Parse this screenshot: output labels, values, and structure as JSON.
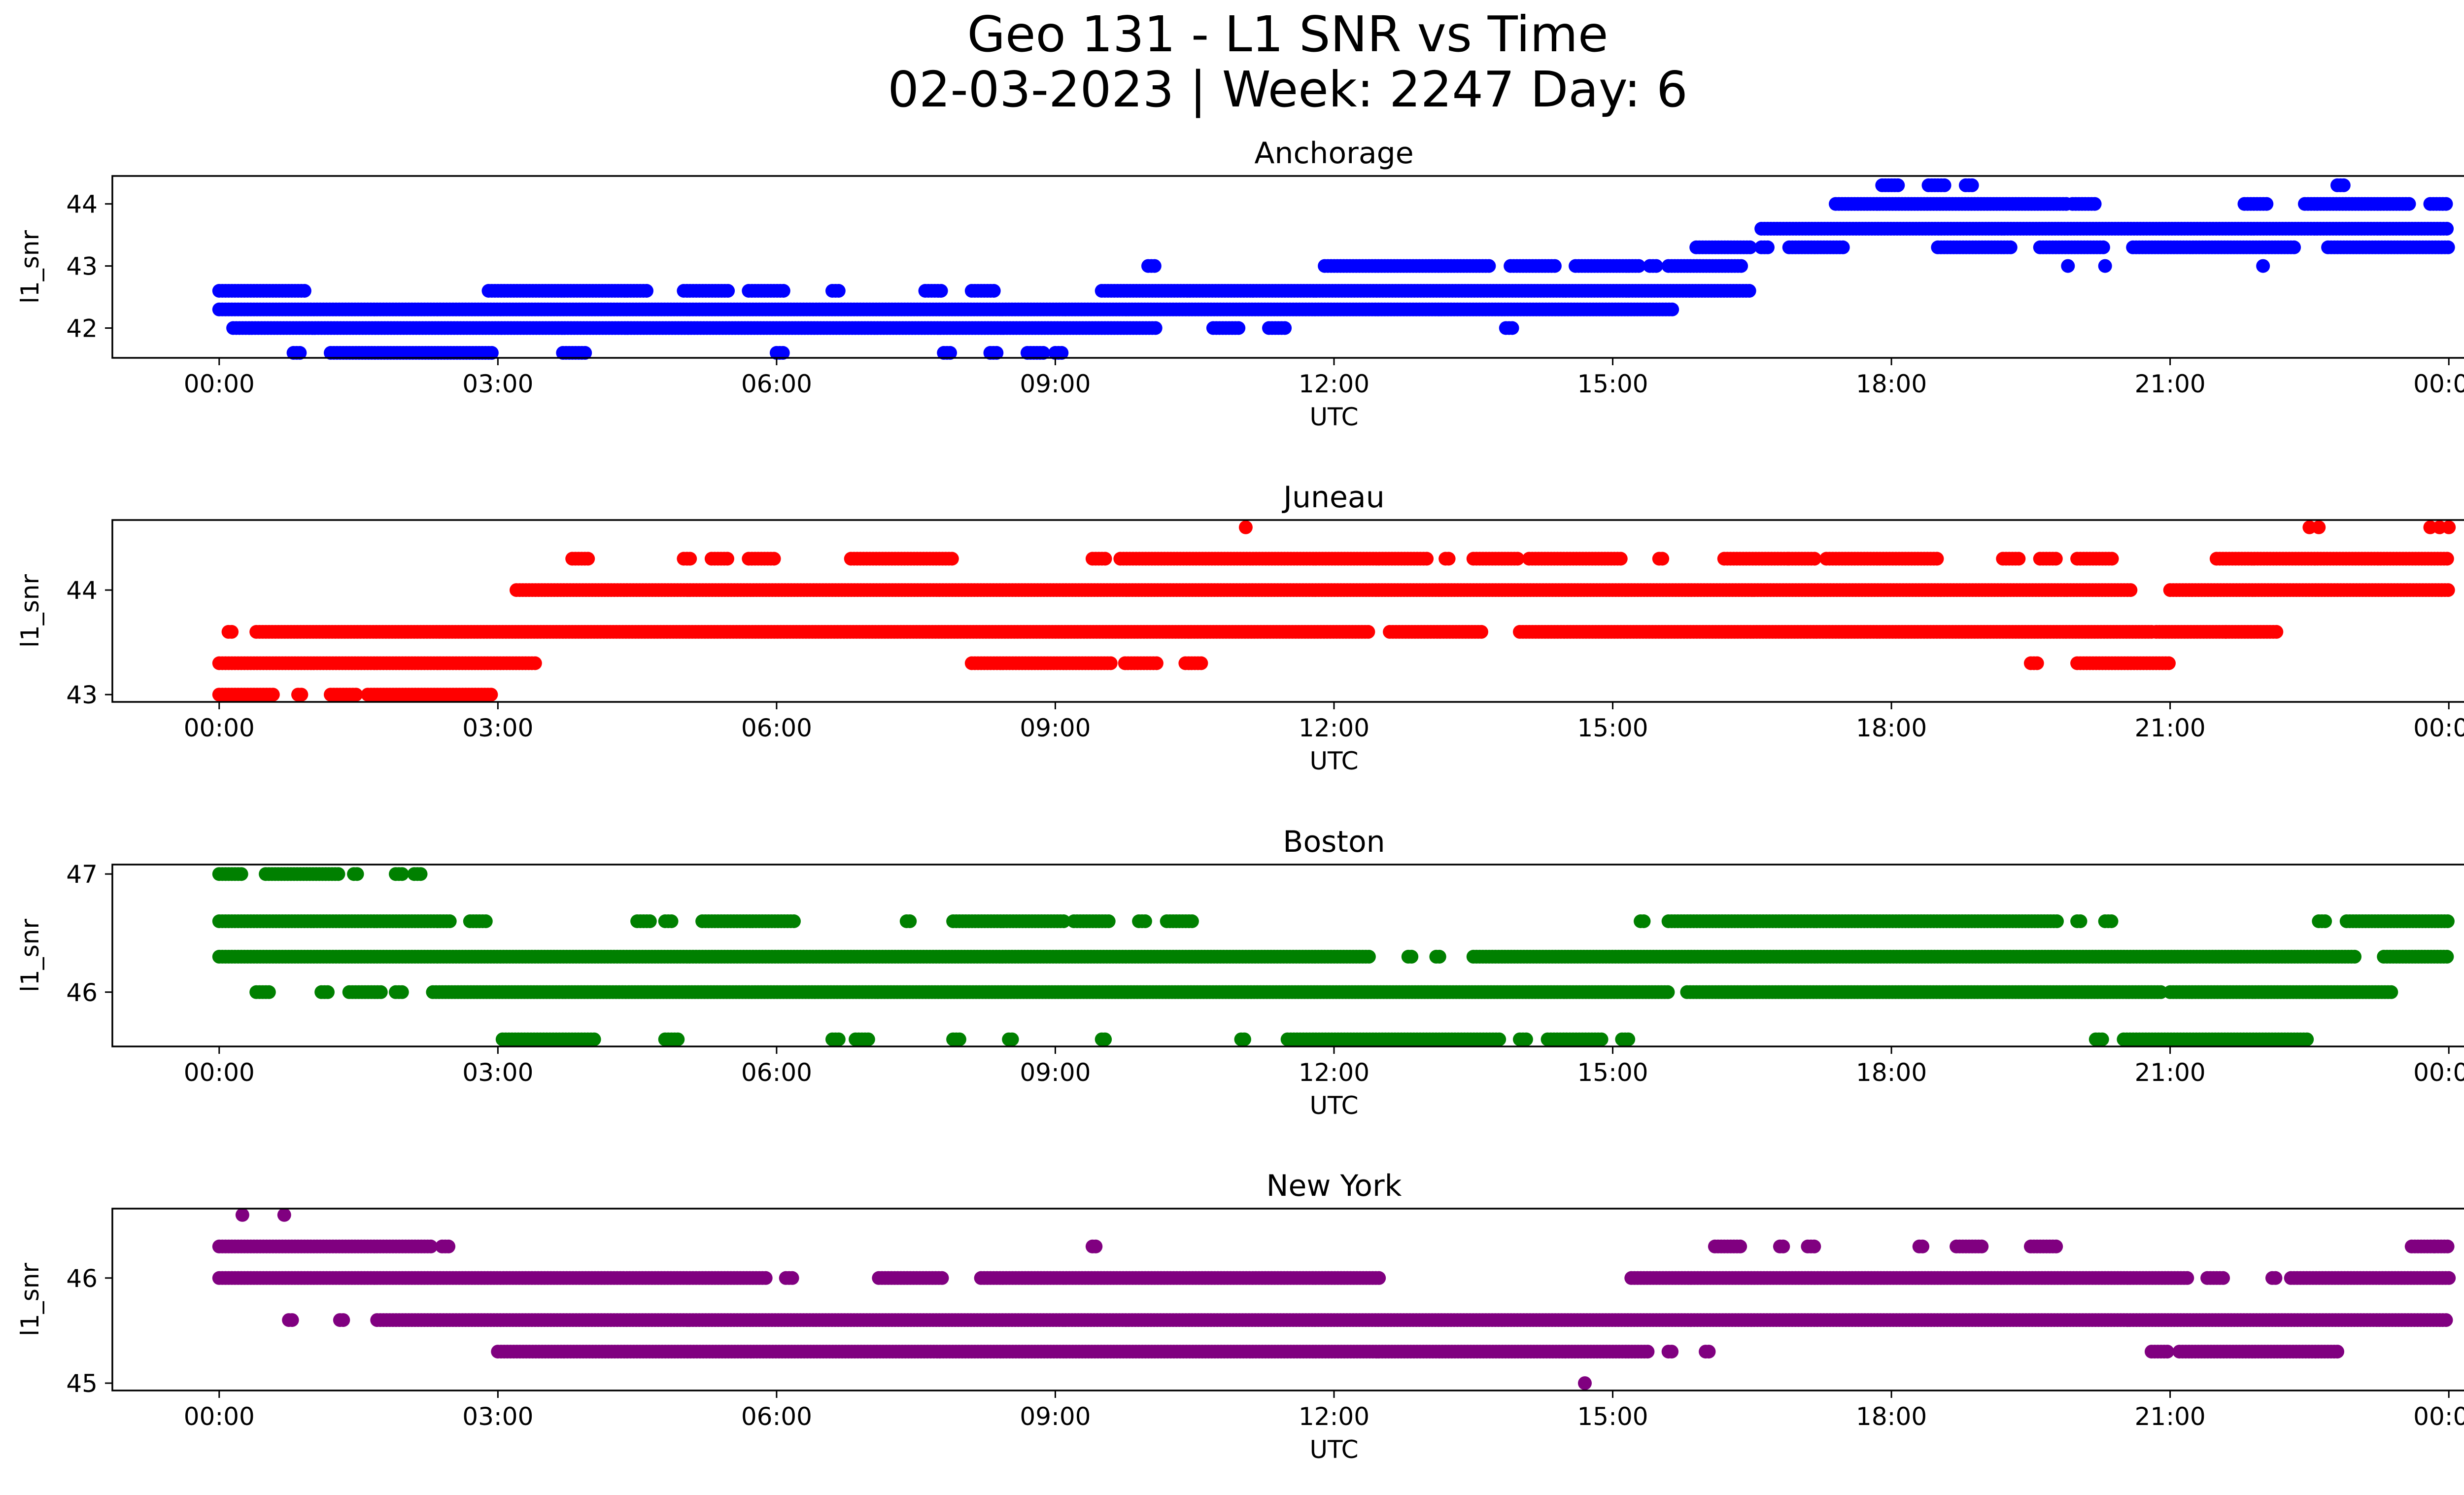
{
  "figure": {
    "title_line1": "Geo 131 - L1 SNR vs Time",
    "title_line2": "02-03-2023 | Week: 2247 Day: 6"
  },
  "chart_data": [
    {
      "type": "scatter",
      "title": "Anchorage",
      "xlabel": "UTC",
      "ylabel": "l1_snr",
      "color": "#0000ff",
      "xticks": [
        "00:00",
        "03:00",
        "06:00",
        "09:00",
        "12:00",
        "15:00",
        "18:00",
        "21:00",
        "00:00"
      ],
      "xlim_hours": [
        -1.15,
        25.15
      ],
      "ylim": [
        41.52,
        44.45
      ],
      "yticks": [
        42,
        43,
        44
      ],
      "levels": [
        {
          "y": 41.6,
          "segments": [
            [
              0.8,
              0.9
            ],
            [
              1.2,
              2.95
            ],
            [
              3.7,
              3.95
            ],
            [
              6.0,
              6.1
            ],
            [
              7.8,
              7.9
            ],
            [
              8.3,
              8.4
            ],
            [
              8.7,
              8.9
            ],
            [
              9.0,
              9.1
            ]
          ]
        },
        {
          "y": 42.0,
          "segments": [
            [
              0.15,
              10.1
            ],
            [
              10.7,
              11.0
            ],
            [
              11.3,
              11.5
            ],
            [
              13.85,
              13.95
            ]
          ]
        },
        {
          "y": 42.3,
          "segments": [
            [
              0.0,
              15.65
            ]
          ]
        },
        {
          "y": 42.6,
          "segments": [
            [
              0.0,
              0.95
            ],
            [
              2.9,
              4.6
            ],
            [
              5.0,
              5.5
            ],
            [
              5.7,
              6.1
            ],
            [
              6.6,
              6.7
            ],
            [
              7.6,
              7.8
            ],
            [
              8.1,
              8.35
            ],
            [
              9.5,
              16.5
            ]
          ]
        },
        {
          "y": 43.0,
          "segments": [
            [
              10.0,
              10.1
            ],
            [
              11.9,
              13.7
            ],
            [
              13.9,
              14.4
            ],
            [
              14.6,
              15.3
            ],
            [
              15.4,
              15.5
            ],
            [
              15.6,
              16.4
            ]
          ]
        },
        {
          "y": 43.3,
          "segments": [
            [
              15.9,
              16.5
            ],
            [
              16.6,
              16.7
            ],
            [
              16.9,
              17.5
            ],
            [
              18.5,
              19.3
            ],
            [
              19.6,
              20.3
            ],
            [
              20.6,
              22.35
            ],
            [
              22.7,
              24.0
            ]
          ]
        },
        {
          "y": 43.6,
          "segments": [
            [
              16.6,
              24.0
            ]
          ]
        },
        {
          "y": 44.0,
          "segments": [
            [
              17.4,
              19.9
            ],
            [
              19.95,
              20.2
            ],
            [
              21.8,
              22.05
            ],
            [
              22.45,
              23.6
            ],
            [
              23.8,
              24.0
            ]
          ]
        },
        {
          "y": 44.3,
          "segments": [
            [
              17.9,
              18.1
            ],
            [
              18.4,
              18.6
            ],
            [
              18.8,
              18.9
            ],
            [
              22.8,
              22.9
            ]
          ]
        },
        {
          "y": 43.0,
          "points": [
            19.9,
            20.3,
            22.0
          ]
        }
      ]
    },
    {
      "type": "scatter",
      "title": "Juneau",
      "xlabel": "UTC",
      "ylabel": "l1_snr",
      "color": "#ff0000",
      "xticks": [
        "00:00",
        "03:00",
        "06:00",
        "09:00",
        "12:00",
        "15:00",
        "18:00",
        "21:00",
        "00:00"
      ],
      "xlim_hours": [
        -1.15,
        25.15
      ],
      "ylim": [
        42.93,
        44.67
      ],
      "yticks": [
        43,
        44
      ],
      "levels": [
        {
          "y": 43.0,
          "segments": [
            [
              0.0,
              0.6
            ],
            [
              0.85,
              0.9
            ],
            [
              1.2,
              1.5
            ],
            [
              1.6,
              2.95
            ]
          ]
        },
        {
          "y": 43.3,
          "segments": [
            [
              0.0,
              3.4
            ],
            [
              8.1,
              9.6
            ],
            [
              9.75,
              10.1
            ],
            [
              10.4,
              10.6
            ],
            [
              19.5,
              19.6
            ],
            [
              20.0,
              21.0
            ]
          ]
        },
        {
          "y": 43.6,
          "segments": [
            [
              0.1,
              0.15
            ],
            [
              0.4,
              12.4
            ],
            [
              12.6,
              13.6
            ],
            [
              14.0,
              20.8
            ],
            [
              20.85,
              21.6
            ],
            [
              21.6,
              22.15
            ]
          ]
        },
        {
          "y": 44.0,
          "segments": [
            [
              3.2,
              20.6
            ],
            [
              21.0,
              24.0
            ]
          ]
        },
        {
          "y": 44.3,
          "segments": [
            [
              3.8,
              4.0
            ],
            [
              5.0,
              5.1
            ],
            [
              5.3,
              5.5
            ],
            [
              5.7,
              6.0
            ],
            [
              6.8,
              7.9
            ],
            [
              9.4,
              9.55
            ],
            [
              9.7,
              13.0
            ],
            [
              13.2,
              13.25
            ],
            [
              13.5,
              14.0
            ],
            [
              14.1,
              15.1
            ],
            [
              15.5,
              15.55
            ],
            [
              16.2,
              16.9
            ],
            [
              16.9,
              17.2
            ],
            [
              17.3,
              18.5
            ],
            [
              19.2,
              19.4
            ],
            [
              19.6,
              19.8
            ],
            [
              20.0,
              20.4
            ],
            [
              21.5,
              24.0
            ]
          ]
        },
        {
          "y": 44.6,
          "points": [
            11.05,
            22.5,
            22.6,
            23.8,
            23.9,
            24.0
          ]
        }
      ]
    },
    {
      "type": "scatter",
      "title": "Boston",
      "xlabel": "UTC",
      "ylabel": "l1_snr",
      "color": "#008000",
      "xticks": [
        "00:00",
        "03:00",
        "06:00",
        "09:00",
        "12:00",
        "15:00",
        "18:00",
        "21:00",
        "00:00"
      ],
      "xlim_hours": [
        -1.15,
        25.15
      ],
      "ylim": [
        45.54,
        47.08
      ],
      "yticks": [
        46,
        47
      ],
      "levels": [
        {
          "y": 45.6,
          "segments": [
            [
              3.05,
              4.05
            ],
            [
              4.8,
              4.95
            ],
            [
              6.6,
              6.7
            ],
            [
              6.85,
              7.0
            ],
            [
              7.9,
              8.0
            ],
            [
              8.5,
              8.55
            ],
            [
              9.5,
              9.55
            ],
            [
              11.0,
              11.05
            ],
            [
              11.5,
              13.8
            ],
            [
              14.0,
              14.1
            ],
            [
              14.3,
              14.9
            ],
            [
              15.1,
              15.2
            ],
            [
              20.2,
              20.3
            ],
            [
              20.5,
              22.5
            ]
          ]
        },
        {
          "y": 46.0,
          "segments": [
            [
              0.4,
              0.55
            ],
            [
              1.1,
              1.2
            ],
            [
              1.4,
              1.75
            ],
            [
              1.9,
              2.0
            ],
            [
              2.3,
              15.6
            ],
            [
              15.8,
              20.9
            ],
            [
              21.0,
              23.4
            ]
          ]
        },
        {
          "y": 46.3,
          "segments": [
            [
              0.0,
              12.4
            ],
            [
              12.8,
              12.85
            ],
            [
              13.1,
              13.15
            ],
            [
              13.5,
              23.0
            ],
            [
              23.3,
              24.0
            ]
          ]
        },
        {
          "y": 46.6,
          "segments": [
            [
              0.0,
              2.5
            ],
            [
              2.7,
              2.9
            ],
            [
              4.5,
              4.65
            ],
            [
              4.8,
              4.9
            ],
            [
              5.2,
              6.2
            ],
            [
              7.4,
              7.45
            ],
            [
              7.9,
              9.1
            ],
            [
              9.2,
              9.6
            ],
            [
              9.9,
              10.0
            ],
            [
              10.2,
              10.5
            ],
            [
              15.3,
              15.35
            ],
            [
              15.6,
              19.8
            ],
            [
              20.0,
              20.05
            ],
            [
              20.3,
              20.4
            ],
            [
              22.6,
              22.7
            ],
            [
              22.9,
              24.0
            ]
          ]
        },
        {
          "y": 47.0,
          "segments": [
            [
              0.0,
              0.25
            ],
            [
              0.5,
              1.3
            ],
            [
              1.45,
              1.5
            ],
            [
              1.9,
              2.0
            ],
            [
              2.1,
              2.2
            ]
          ]
        }
      ]
    },
    {
      "type": "scatter",
      "title": "New York",
      "xlabel": "UTC",
      "ylabel": "l1_snr",
      "color": "#800080",
      "xticks": [
        "00:00",
        "03:00",
        "06:00",
        "09:00",
        "12:00",
        "15:00",
        "18:00",
        "21:00",
        "00:00"
      ],
      "xlim_hours": [
        -1.15,
        25.15
      ],
      "ylim": [
        44.93,
        46.66
      ],
      "yticks": [
        45,
        46
      ],
      "levels": [
        {
          "y": 45.0,
          "points": [
            14.7
          ]
        },
        {
          "y": 45.3,
          "segments": [
            [
              3.0,
              15.4
            ],
            [
              15.6,
              15.65
            ],
            [
              16.0,
              16.05
            ],
            [
              20.8,
              21.0
            ],
            [
              21.1,
              22.8
            ]
          ]
        },
        {
          "y": 45.6,
          "segments": [
            [
              0.75,
              0.8
            ],
            [
              1.3,
              1.35
            ],
            [
              1.7,
              24.0
            ]
          ]
        },
        {
          "y": 46.0,
          "segments": [
            [
              0.0,
              5.9
            ],
            [
              6.1,
              6.2
            ],
            [
              7.1,
              7.8
            ],
            [
              8.2,
              12.5
            ],
            [
              15.2,
              21.2
            ],
            [
              21.4,
              21.6
            ],
            [
              22.1,
              22.15
            ],
            [
              22.3,
              24.0
            ]
          ]
        },
        {
          "y": 46.3,
          "segments": [
            [
              0.0,
              2.3
            ],
            [
              2.4,
              2.5
            ],
            [
              9.4,
              9.45
            ],
            [
              16.1,
              16.4
            ],
            [
              16.8,
              16.85
            ],
            [
              17.1,
              17.2
            ],
            [
              18.3,
              18.35
            ],
            [
              18.7,
              19.0
            ],
            [
              19.5,
              19.8
            ],
            [
              23.6,
              23.85
            ],
            [
              23.85,
              24.0
            ]
          ]
        },
        {
          "y": 46.6,
          "points": [
            0.25,
            0.7
          ]
        }
      ]
    }
  ]
}
